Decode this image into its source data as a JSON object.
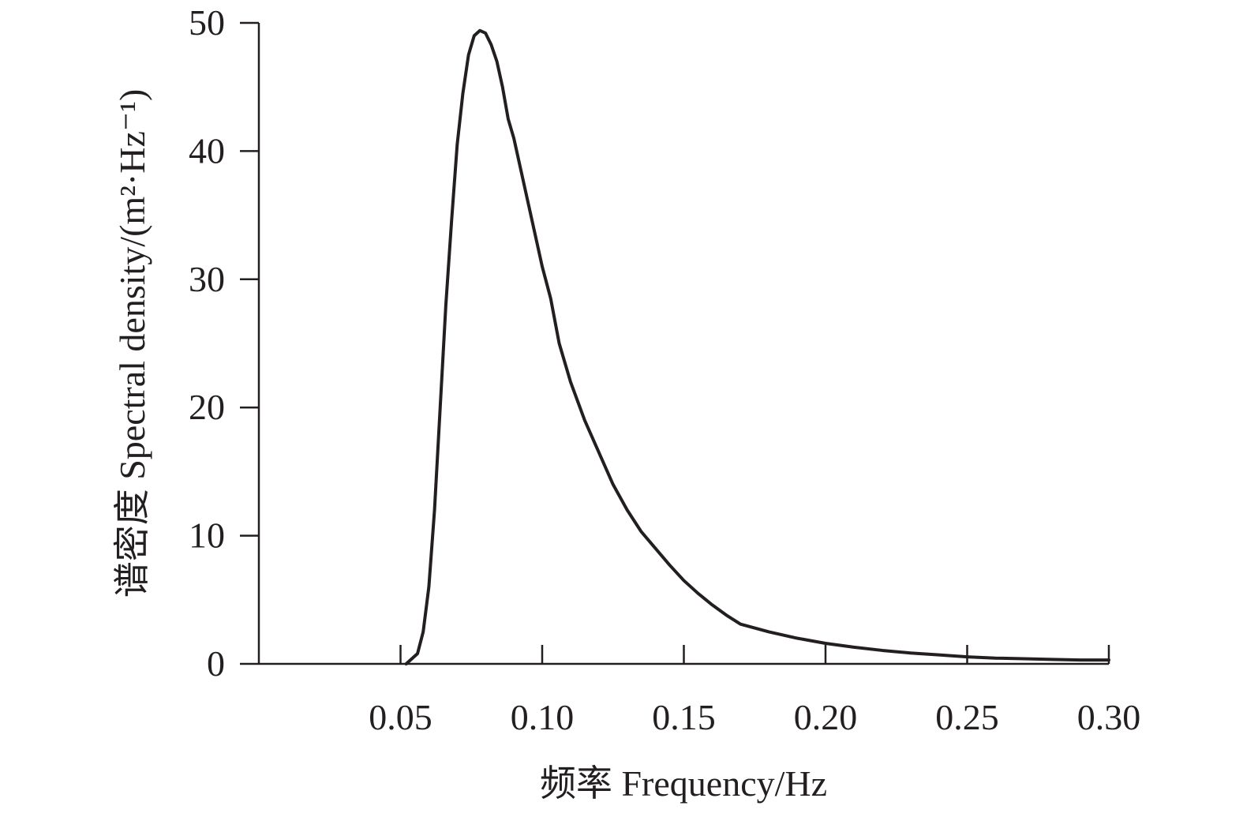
{
  "chart_data": {
    "type": "line",
    "title": "",
    "xlabel": "频率 Frequency/Hz",
    "ylabel": "谱密度 Spectral density/(m²·Hz⁻¹)",
    "xlim": [
      0.0,
      0.3
    ],
    "ylim": [
      0,
      50
    ],
    "x_ticks": [
      "0.05",
      "0.10",
      "0.15",
      "0.20",
      "0.25",
      "0.30"
    ],
    "y_ticks": [
      "0",
      "10",
      "20",
      "30",
      "40",
      "50"
    ],
    "grid": false,
    "legend": "none",
    "color": "#231f20",
    "series": [
      {
        "x": [
          0.052,
          0.056,
          0.058,
          0.06,
          0.062,
          0.064,
          0.066,
          0.068,
          0.07,
          0.072,
          0.074,
          0.076,
          0.078,
          0.08,
          0.082,
          0.084,
          0.086,
          0.088,
          0.09,
          0.092,
          0.094,
          0.096,
          0.098,
          0.1,
          0.103,
          0.106,
          0.11,
          0.115,
          0.12,
          0.125,
          0.13,
          0.135,
          0.14,
          0.145,
          0.15,
          0.155,
          0.16,
          0.165,
          0.17,
          0.18,
          0.19,
          0.2,
          0.21,
          0.22,
          0.23,
          0.24,
          0.25,
          0.26,
          0.27,
          0.28,
          0.29,
          0.3
        ],
        "y": [
          0.0,
          0.8,
          2.5,
          6.0,
          12.0,
          20.0,
          28.0,
          34.5,
          40.5,
          44.5,
          47.5,
          49.0,
          49.4,
          49.2,
          48.3,
          47.0,
          45.0,
          42.5,
          41.0,
          39.0,
          37.0,
          35.0,
          33.0,
          31.0,
          28.5,
          25.0,
          22.0,
          19.0,
          16.5,
          14.0,
          12.0,
          10.3,
          9.0,
          7.7,
          6.5,
          5.5,
          4.6,
          3.8,
          3.1,
          2.5,
          2.0,
          1.6,
          1.3,
          1.05,
          0.85,
          0.7,
          0.55,
          0.45,
          0.4,
          0.35,
          0.3,
          0.3
        ]
      }
    ]
  }
}
